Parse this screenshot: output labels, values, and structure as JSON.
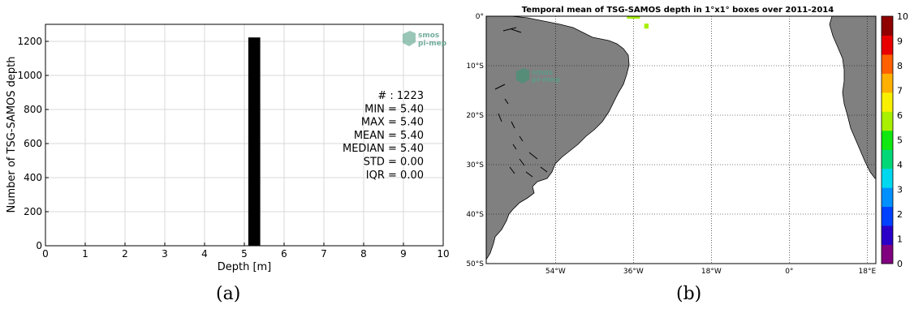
{
  "panel_a": {
    "caption": "(a)",
    "logo": {
      "line1": "smos",
      "line2": "pi-mep",
      "color": "#5a9e8a"
    },
    "stats": [
      {
        "label": "# :",
        "value": "1223"
      },
      {
        "label": "MIN =",
        "value": "5.40"
      },
      {
        "label": "MAX =",
        "value": "5.40"
      },
      {
        "label": "MEAN =",
        "value": "5.40"
      },
      {
        "label": "MEDIAN =",
        "value": "5.40"
      },
      {
        "label": "STD =",
        "value": "0.00"
      },
      {
        "label": "IQR =",
        "value": "0.00"
      }
    ]
  },
  "panel_b": {
    "caption": "(b)",
    "logo": {
      "line1": "smos",
      "line2": "pi-mep",
      "color": "#5a9e8a"
    },
    "colors": {
      "land": "#808080",
      "coast": "#000000",
      "ocean": "#ffffff"
    }
  },
  "chart_data": [
    {
      "type": "bar",
      "title": "",
      "xlabel": "Depth [m]",
      "ylabel": "Number of TSG-SAMOS depth",
      "xlim": [
        0,
        10
      ],
      "ylim": [
        0,
        1300
      ],
      "xticks": [
        "0",
        "1",
        "2",
        "3",
        "4",
        "5",
        "6",
        "7",
        "8",
        "9",
        "10"
      ],
      "yticks": [
        "0",
        "200",
        "400",
        "600",
        "800",
        "1000",
        "1200"
      ],
      "bins": [
        {
          "x0": 5.1,
          "x1": 5.4,
          "count": 1223
        }
      ],
      "bar_color": "#000000",
      "grid": true
    },
    {
      "type": "heatmap",
      "title": "Temporal mean of TSG-SAMOS depth in 1°x1° boxes over 2011-2014",
      "xlabel": "",
      "ylabel": "",
      "xlim": [
        -70,
        20
      ],
      "ylim": [
        -50,
        0
      ],
      "xticks": [
        {
          "value": -54,
          "label": "54°W"
        },
        {
          "value": -36,
          "label": "36°W"
        },
        {
          "value": -18,
          "label": "18°W"
        },
        {
          "value": 0,
          "label": "0°"
        },
        {
          "value": 18,
          "label": "18°E"
        }
      ],
      "yticks": [
        {
          "value": 0,
          "label": "0°"
        },
        {
          "value": -10,
          "label": "10°S"
        },
        {
          "value": -20,
          "label": "20°S"
        },
        {
          "value": -30,
          "label": "30°S"
        },
        {
          "value": -40,
          "label": "40°S"
        },
        {
          "value": -50,
          "label": "50°S"
        }
      ],
      "cells": [
        {
          "lon": -37,
          "lat": 0,
          "value": 5.4
        },
        {
          "lon": -36,
          "lat": 0,
          "value": 5.4
        },
        {
          "lon": -35,
          "lat": 0,
          "value": 5.4
        },
        {
          "lon": -33,
          "lat": -2,
          "value": 5.4
        }
      ],
      "colorbar": {
        "min": 0,
        "max": 10,
        "ticks": [
          "0",
          "1",
          "2",
          "3",
          "4",
          "5",
          "6",
          "7",
          "8",
          "9",
          "10"
        ],
        "colors": [
          "#800080",
          "#2a00c8",
          "#0040ff",
          "#0090ff",
          "#00d8f0",
          "#00d878",
          "#10e810",
          "#a8f000",
          "#f8f000",
          "#ffb000",
          "#ff6000",
          "#e80000",
          "#900000"
        ]
      },
      "grid": true
    }
  ]
}
